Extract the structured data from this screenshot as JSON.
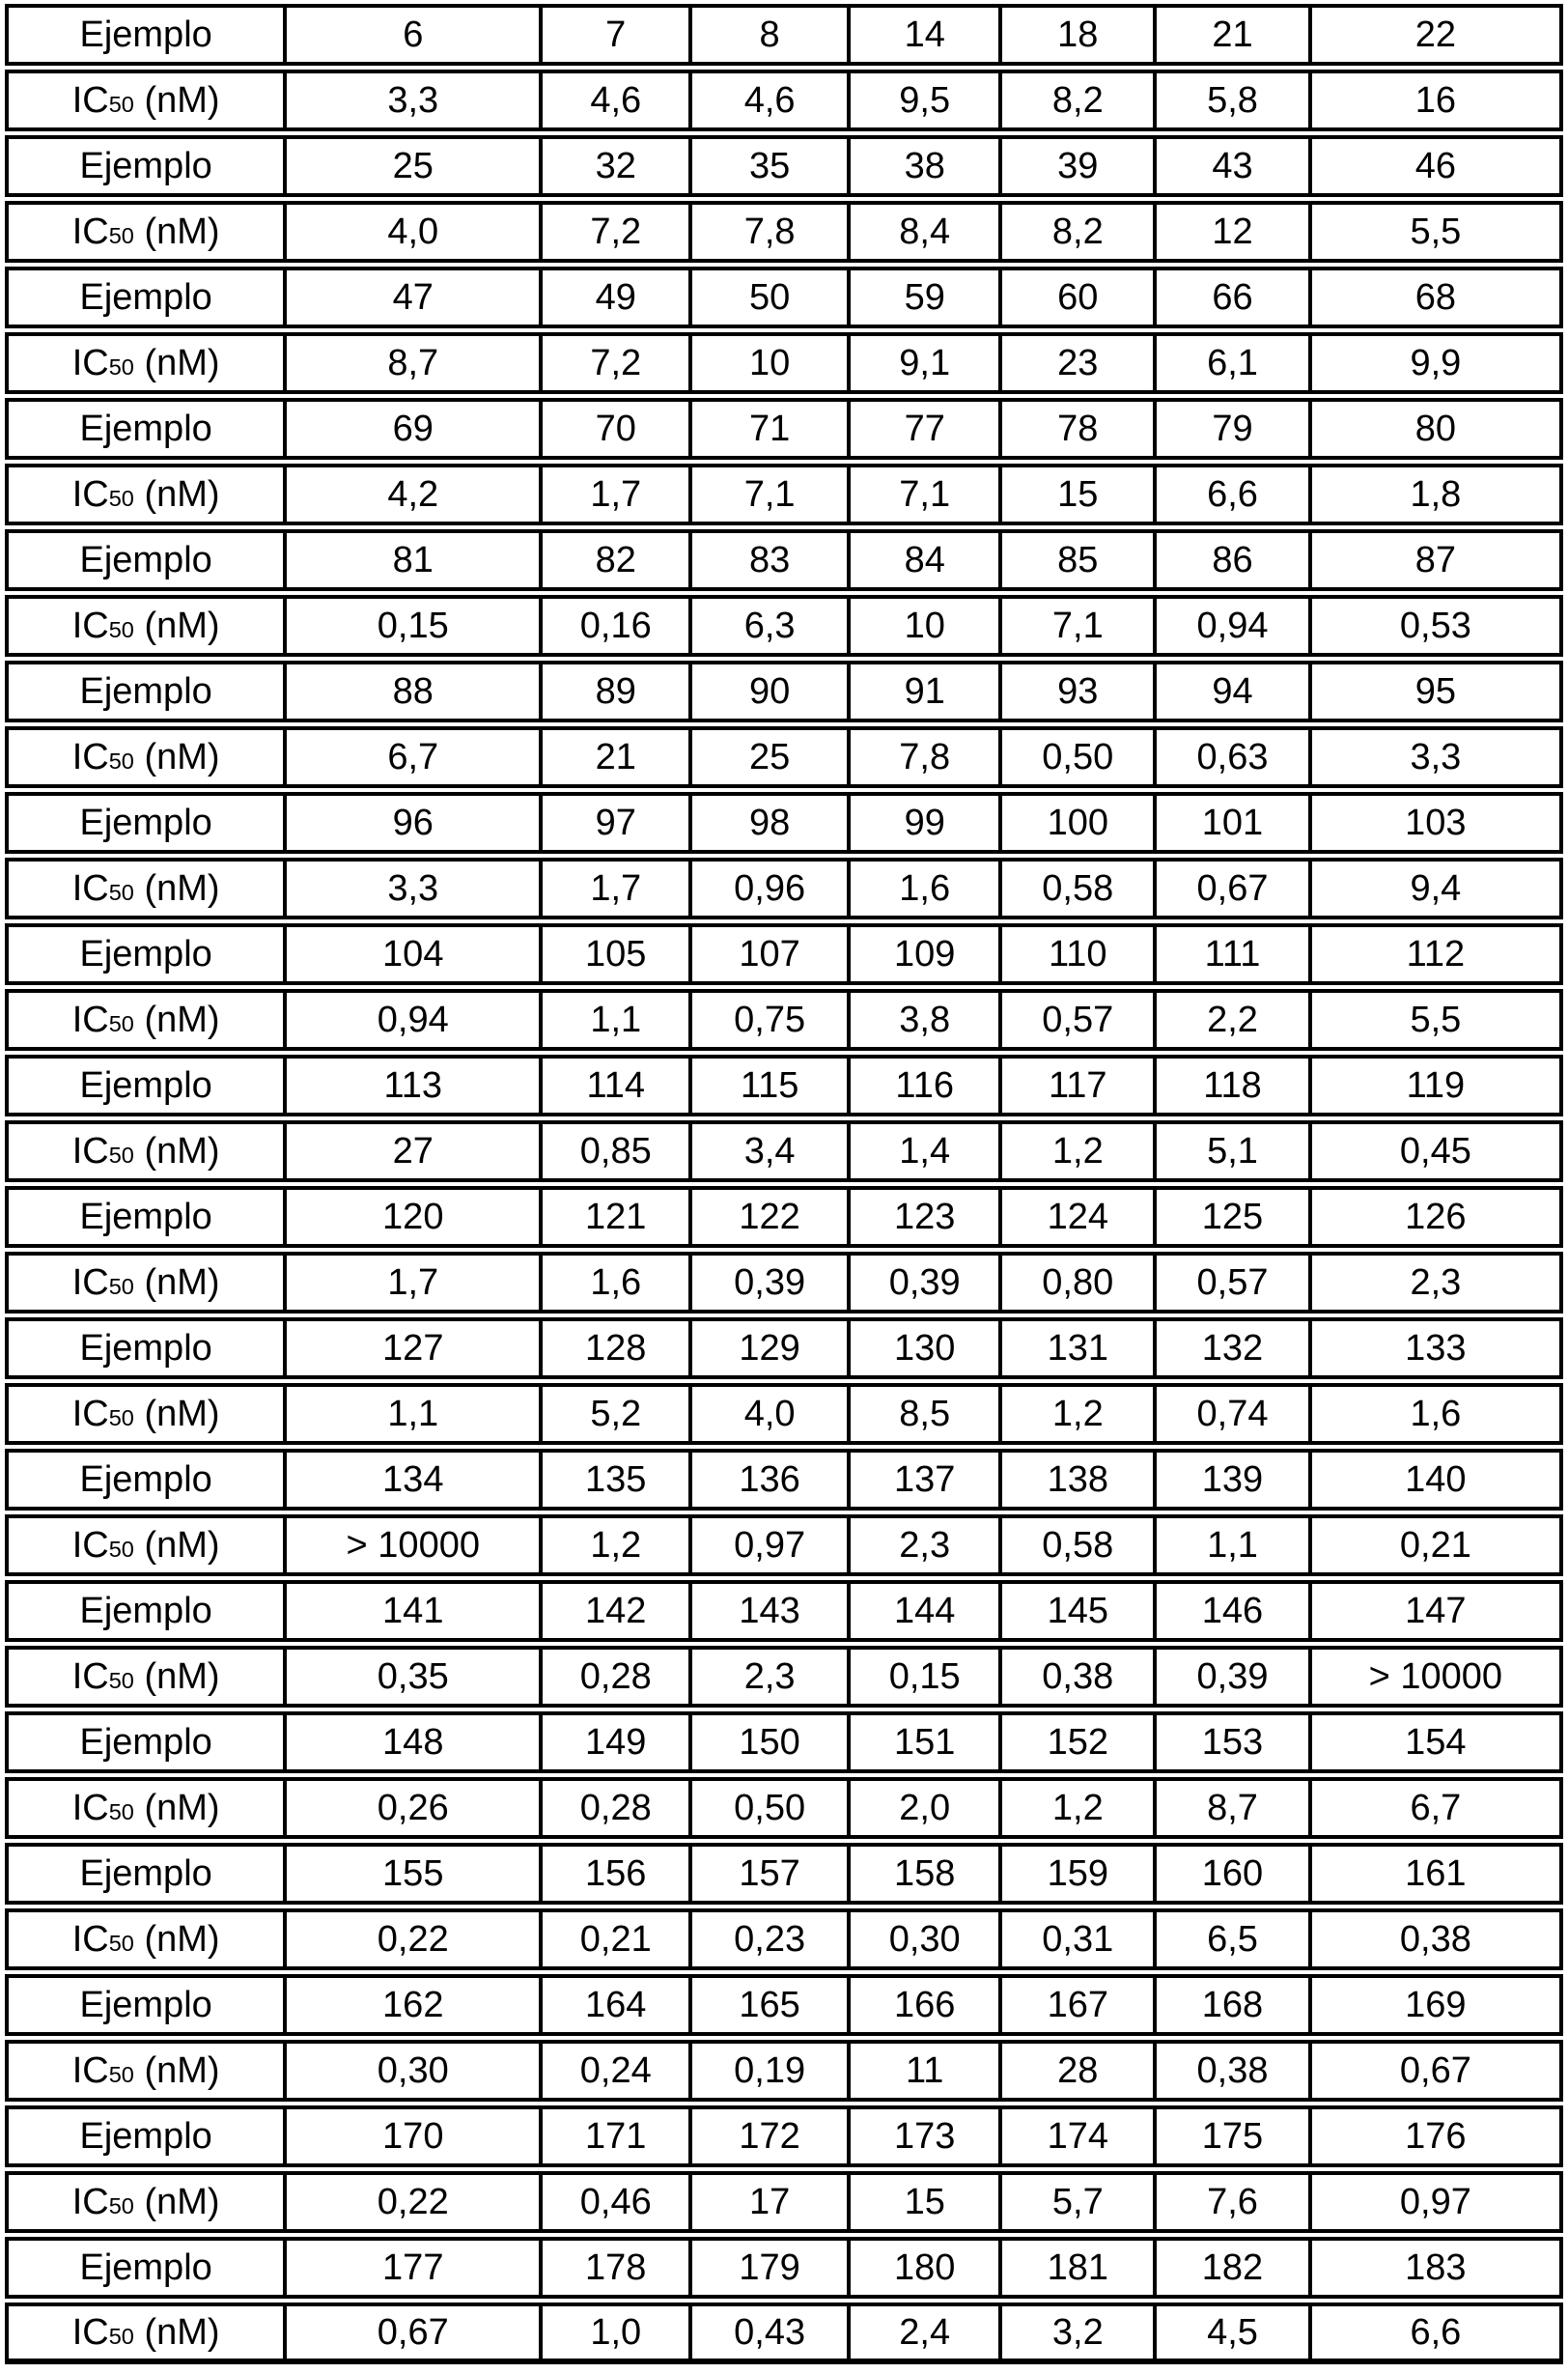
{
  "table": {
    "labels": {
      "example": "Ejemplo",
      "ic50": {
        "prefix": "IC",
        "sub": "50",
        "suffix": " (nM)"
      }
    },
    "pairs": [
      {
        "examples": [
          "6",
          "7",
          "8",
          "14",
          "18",
          "21",
          "22"
        ],
        "ic50": [
          "3,3",
          "4,6",
          "4,6",
          "9,5",
          "8,2",
          "5,8",
          "16"
        ]
      },
      {
        "examples": [
          "25",
          "32",
          "35",
          "38",
          "39",
          "43",
          "46"
        ],
        "ic50": [
          "4,0",
          "7,2",
          "7,8",
          "8,4",
          "8,2",
          "12",
          "5,5"
        ]
      },
      {
        "examples": [
          "47",
          "49",
          "50",
          "59",
          "60",
          "66",
          "68"
        ],
        "ic50": [
          "8,7",
          "7,2",
          "10",
          "9,1",
          "23",
          "6,1",
          "9,9"
        ]
      },
      {
        "examples": [
          "69",
          "70",
          "71",
          "77",
          "78",
          "79",
          "80"
        ],
        "ic50": [
          "4,2",
          "1,7",
          "7,1",
          "7,1",
          "15",
          "6,6",
          "1,8"
        ]
      },
      {
        "examples": [
          "81",
          "82",
          "83",
          "84",
          "85",
          "86",
          "87"
        ],
        "ic50": [
          "0,15",
          "0,16",
          "6,3",
          "10",
          "7,1",
          "0,94",
          "0,53"
        ]
      },
      {
        "examples": [
          "88",
          "89",
          "90",
          "91",
          "93",
          "94",
          "95"
        ],
        "ic50": [
          "6,7",
          "21",
          "25",
          "7,8",
          "0,50",
          "0,63",
          "3,3"
        ]
      },
      {
        "examples": [
          "96",
          "97",
          "98",
          "99",
          "100",
          "101",
          "103"
        ],
        "ic50": [
          "3,3",
          "1,7",
          "0,96",
          "1,6",
          "0,58",
          "0,67",
          "9,4"
        ]
      },
      {
        "examples": [
          "104",
          "105",
          "107",
          "109",
          "110",
          "111",
          "112"
        ],
        "ic50": [
          "0,94",
          "1,1",
          "0,75",
          "3,8",
          "0,57",
          "2,2",
          "5,5"
        ]
      },
      {
        "examples": [
          "113",
          "114",
          "115",
          "116",
          "117",
          "118",
          "119"
        ],
        "ic50": [
          "27",
          "0,85",
          "3,4",
          "1,4",
          "1,2",
          "5,1",
          "0,45"
        ]
      },
      {
        "examples": [
          "120",
          "121",
          "122",
          "123",
          "124",
          "125",
          "126"
        ],
        "ic50": [
          "1,7",
          "1,6",
          "0,39",
          "0,39",
          "0,80",
          "0,57",
          "2,3"
        ]
      },
      {
        "examples": [
          "127",
          "128",
          "129",
          "130",
          "131",
          "132",
          "133"
        ],
        "ic50": [
          "1,1",
          "5,2",
          "4,0",
          "8,5",
          "1,2",
          "0,74",
          "1,6"
        ]
      },
      {
        "examples": [
          "134",
          "135",
          "136",
          "137",
          "138",
          "139",
          "140"
        ],
        "ic50": [
          "> 10000",
          "1,2",
          "0,97",
          "2,3",
          "0,58",
          "1,1",
          "0,21"
        ]
      },
      {
        "examples": [
          "141",
          "142",
          "143",
          "144",
          "145",
          "146",
          "147"
        ],
        "ic50": [
          "0,35",
          "0,28",
          "2,3",
          "0,15",
          "0,38",
          "0,39",
          "> 10000"
        ]
      },
      {
        "examples": [
          "148",
          "149",
          "150",
          "151",
          "152",
          "153",
          "154"
        ],
        "ic50": [
          "0,26",
          "0,28",
          "0,50",
          "2,0",
          "1,2",
          "8,7",
          "6,7"
        ]
      },
      {
        "examples": [
          "155",
          "156",
          "157",
          "158",
          "159",
          "160",
          "161"
        ],
        "ic50": [
          "0,22",
          "0,21",
          "0,23",
          "0,30",
          "0,31",
          "6,5",
          "0,38"
        ]
      },
      {
        "examples": [
          "162",
          "164",
          "165",
          "166",
          "167",
          "168",
          "169"
        ],
        "ic50": [
          "0,30",
          "0,24",
          "0,19",
          "11",
          "28",
          "0,38",
          "0,67"
        ]
      },
      {
        "examples": [
          "170",
          "171",
          "172",
          "173",
          "174",
          "175",
          "176"
        ],
        "ic50": [
          "0,22",
          "0,46",
          "17",
          "15",
          "5,7",
          "7,6",
          "0,97"
        ]
      },
      {
        "examples": [
          "177",
          "178",
          "179",
          "180",
          "181",
          "182",
          "183"
        ],
        "ic50": [
          "0,67",
          "1,0",
          "0,43",
          "2,4",
          "3,2",
          "4,5",
          "6,6"
        ]
      }
    ]
  },
  "chart_data": {
    "type": "table",
    "title": "",
    "row_label_pattern": [
      "Ejemplo",
      "IC50 (nM)"
    ],
    "columns_per_row": 7,
    "pair_count": 18
  }
}
